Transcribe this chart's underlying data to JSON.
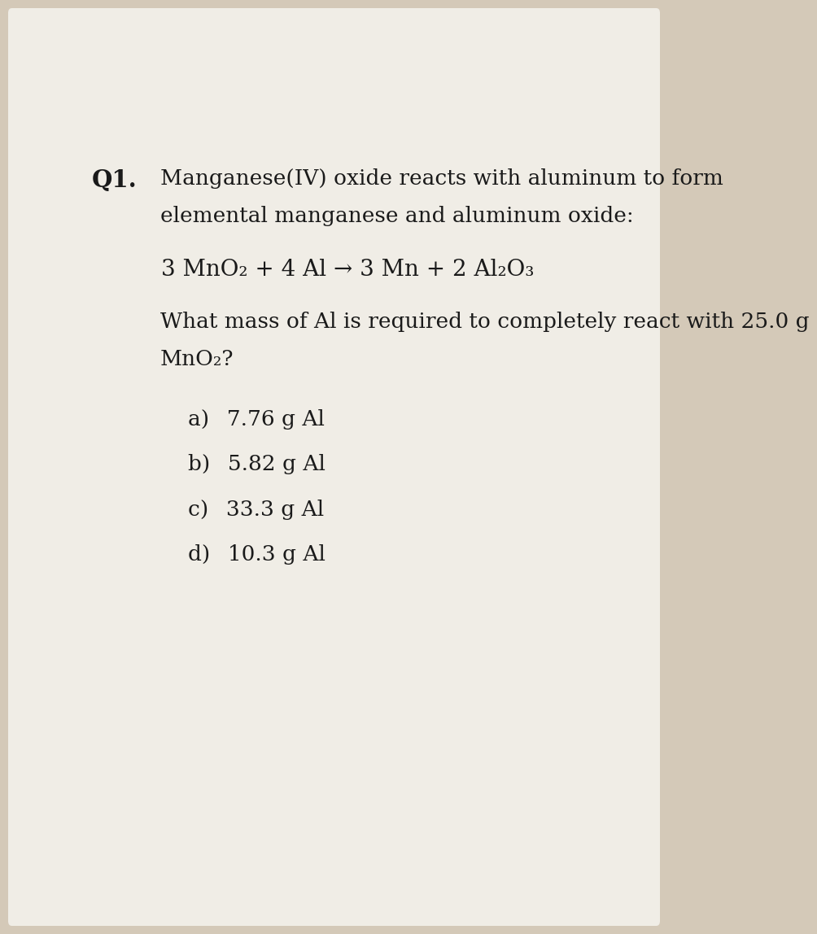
{
  "background_color": "#d4c9b8",
  "paper_color": "#f0ede6",
  "question_number": "Q1.",
  "line1": "Manganese(IV) oxide reacts with aluminum to form",
  "line2": "elemental manganese and aluminum oxide:",
  "equation": "3 MnO₂ + 4 Al → 3 Mn + 2 Al₂O₃",
  "question": "What mass of Al is required to completely react with 25.0 g",
  "question2": "MnO₂?",
  "choices": [
    "a)  7.76 g Al",
    "b)  5.82 g Al",
    "c)  33.3 g Al",
    "d)  10.3 g Al"
  ],
  "font_size_body": 19,
  "font_size_q": 21,
  "text_color": "#1a1a1a"
}
